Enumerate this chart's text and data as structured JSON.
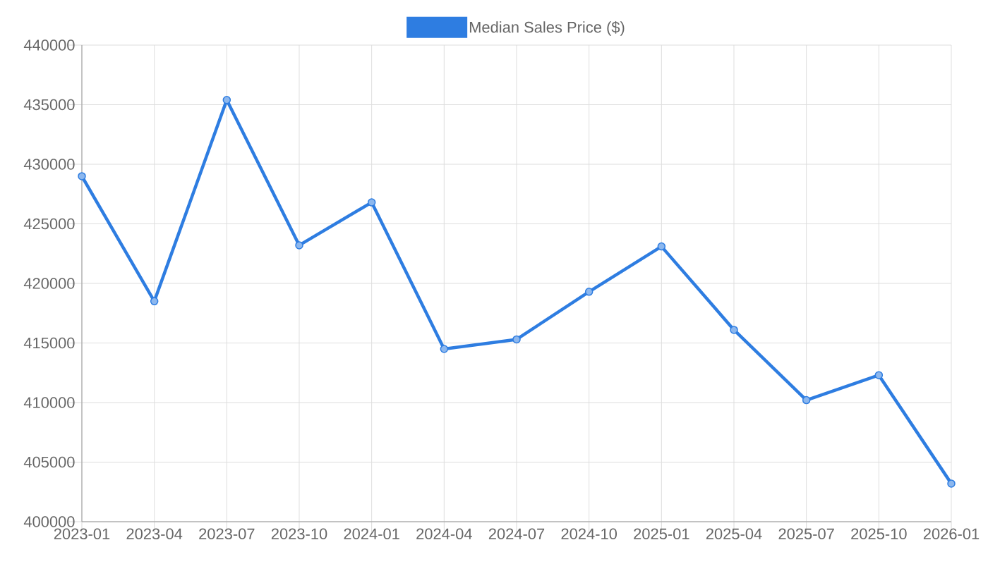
{
  "chart_data": {
    "type": "line",
    "categories": [
      "2023-01",
      "2023-04",
      "2023-07",
      "2023-10",
      "2024-01",
      "2024-04",
      "2024-07",
      "2024-10",
      "2025-01",
      "2025-04",
      "2025-07",
      "2025-10",
      "2026-01"
    ],
    "series": [
      {
        "name": "Median Sales Price ($)",
        "color": "#2e7de1",
        "values": [
          429000,
          418500,
          435400,
          423200,
          426800,
          414500,
          415300,
          419300,
          423100,
          416100,
          410200,
          412300,
          403200
        ]
      }
    ],
    "ylim": [
      400000,
      440000
    ],
    "yticks": [
      400000,
      405000,
      410000,
      415000,
      420000,
      425000,
      430000,
      435000,
      440000
    ],
    "grid": true,
    "legend": "top",
    "marker": "circle",
    "line_style": "solid"
  }
}
